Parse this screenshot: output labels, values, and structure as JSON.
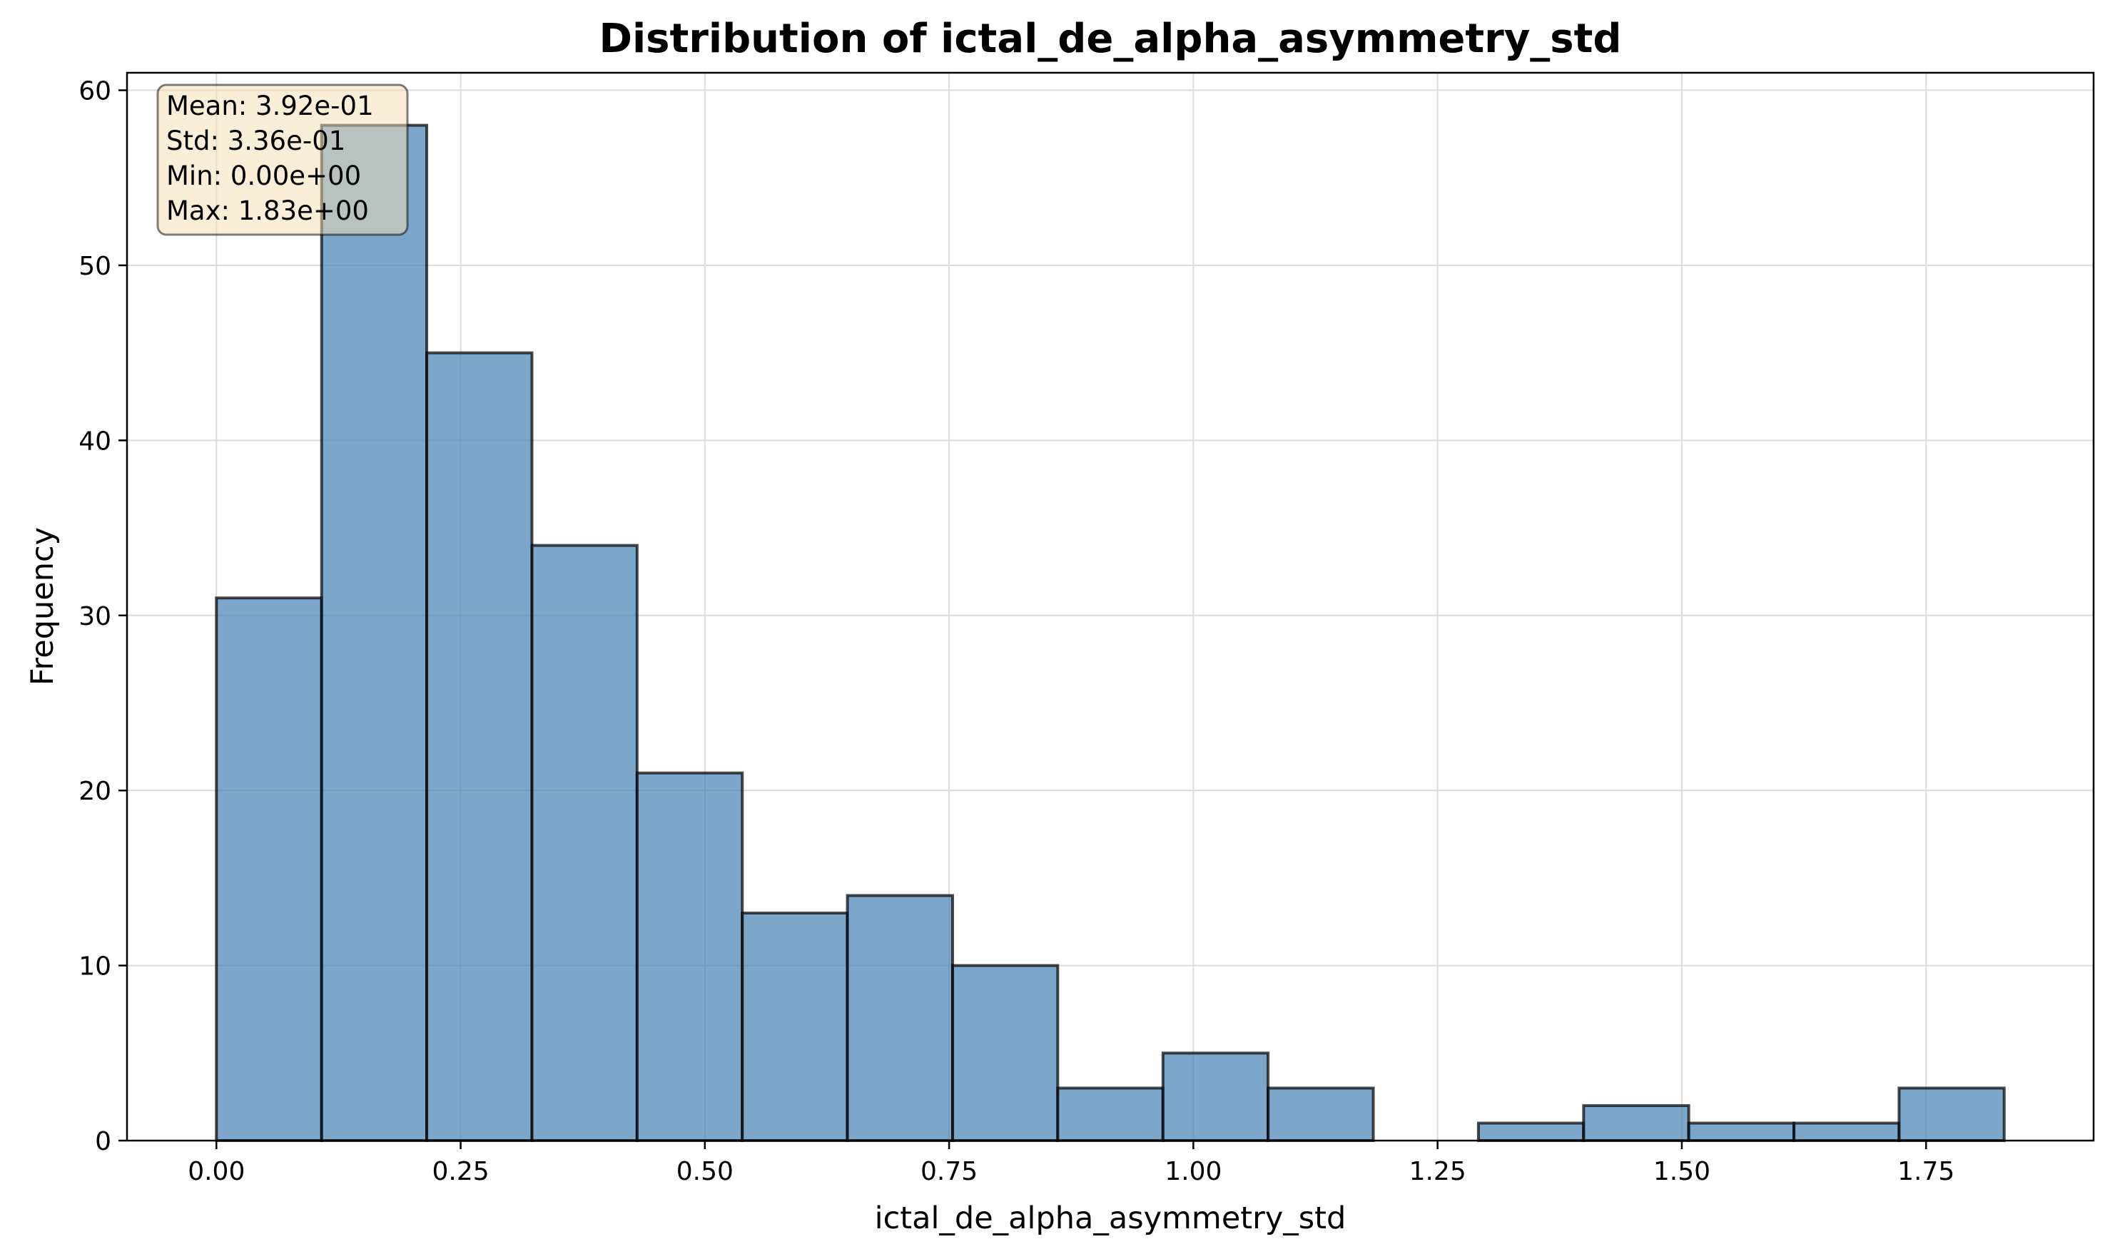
{
  "chart_data": {
    "type": "bar",
    "title": "Distribution of ictal_de_alpha_asymmetry_std",
    "xlabel": "ictal_de_alpha_asymmetry_std",
    "ylabel": "Frequency",
    "xlim": [
      -0.0915,
      1.9215
    ],
    "ylim": [
      0,
      61
    ],
    "grid": true,
    "bin_edges": [
      0.0,
      0.1077,
      0.2153,
      0.323,
      0.4306,
      0.5383,
      0.6459,
      0.7536,
      0.8612,
      0.9689,
      1.0765,
      1.1842,
      1.2918,
      1.3995,
      1.5071,
      1.6148,
      1.7224,
      1.83
    ],
    "values": [
      31,
      58,
      45,
      34,
      21,
      13,
      14,
      10,
      3,
      5,
      3,
      0,
      1,
      2,
      1,
      1,
      3
    ],
    "x_ticks": [
      0.0,
      0.25,
      0.5,
      0.75,
      1.0,
      1.25,
      1.5,
      1.75
    ],
    "x_tick_labels": [
      "0.00",
      "0.25",
      "0.50",
      "0.75",
      "1.00",
      "1.25",
      "1.50",
      "1.75"
    ],
    "y_ticks": [
      0,
      10,
      20,
      30,
      40,
      50,
      60
    ],
    "y_tick_labels": [
      "0",
      "10",
      "20",
      "30",
      "40",
      "50",
      "60"
    ],
    "bar_color": "#4682b4",
    "stats_box": {
      "position": "top-left",
      "background": "#f5deb3",
      "lines": [
        "Mean: 3.92e-01",
        "Std: 3.36e-01",
        "Min: 0.00e+00",
        "Max: 1.83e+00"
      ]
    }
  }
}
